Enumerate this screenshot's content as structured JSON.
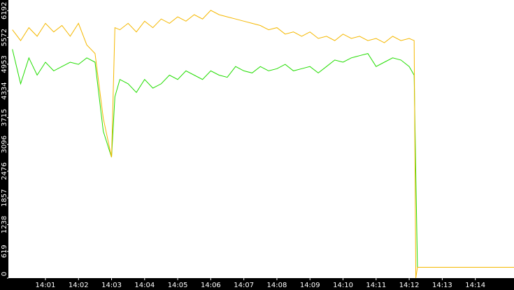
{
  "chart_data": {
    "type": "line",
    "x": [
      0,
      0.25,
      0.5,
      0.75,
      1.0,
      1.25,
      1.5,
      1.75,
      2.0,
      2.25,
      2.5,
      2.75,
      3.0,
      3.1,
      3.25,
      3.5,
      3.75,
      4.0,
      4.25,
      4.5,
      4.75,
      5.0,
      5.25,
      5.5,
      5.75,
      6.0,
      6.25,
      6.5,
      6.75,
      7.0,
      7.25,
      7.5,
      7.75,
      8.0,
      8.25,
      8.5,
      8.75,
      9.0,
      9.25,
      9.5,
      9.75,
      10.0,
      10.25,
      10.5,
      10.75,
      11.0,
      11.25,
      11.5,
      11.75,
      12.0,
      12.15,
      12.2,
      12.25,
      15.2
    ],
    "series": [
      {
        "color": "#22dd00",
        "values": [
          5300,
          4500,
          5100,
          4700,
          5000,
          4800,
          4900,
          5000,
          4950,
          5100,
          5000,
          3400,
          2800,
          4200,
          4600,
          4500,
          4300,
          4600,
          4400,
          4500,
          4700,
          4600,
          4800,
          4700,
          4600,
          4800,
          4700,
          4650,
          4900,
          4800,
          4750,
          4900,
          4800,
          4850,
          4950,
          4800,
          4850,
          4900,
          4750,
          4900,
          5050,
          5000,
          5100,
          5150,
          5200,
          4900,
          5000,
          5100,
          5050,
          4900,
          4700,
          2400,
          250,
          250
        ]
      },
      {
        "color": "#f5b800",
        "values": [
          5750,
          5500,
          5800,
          5600,
          5900,
          5700,
          5850,
          5600,
          5900,
          5400,
          5200,
          3700,
          2800,
          5800,
          5750,
          5900,
          5700,
          5950,
          5800,
          6000,
          5900,
          6050,
          5950,
          6100,
          6000,
          6200,
          6100,
          6050,
          6000,
          5950,
          5900,
          5850,
          5750,
          5800,
          5650,
          5700,
          5600,
          5700,
          5550,
          5600,
          5500,
          5650,
          5550,
          5600,
          5500,
          5550,
          5450,
          5600,
          5500,
          5550,
          5500,
          0,
          250,
          250
        ]
      }
    ],
    "xlim": [
      -0.12,
      15.17
    ],
    "xticks": [
      {
        "value": 1,
        "label": "14:01"
      },
      {
        "value": 2,
        "label": "14:02"
      },
      {
        "value": 3,
        "label": "14:03"
      },
      {
        "value": 4,
        "label": "14:04"
      },
      {
        "value": 5,
        "label": "14:05"
      },
      {
        "value": 6,
        "label": "14:06"
      },
      {
        "value": 7,
        "label": "14:07"
      },
      {
        "value": 8,
        "label": "14:08"
      },
      {
        "value": 9,
        "label": "14:09"
      },
      {
        "value": 10,
        "label": "14:10"
      },
      {
        "value": 11,
        "label": "14:11"
      },
      {
        "value": 12,
        "label": "14:12"
      },
      {
        "value": 13,
        "label": "14:13"
      },
      {
        "value": 14,
        "label": "14:14"
      }
    ],
    "ylim": [
      0,
      6440
    ],
    "yticks": [
      0,
      619,
      1238,
      1857,
      2476,
      3096,
      3715,
      4334,
      4953,
      5572,
      6192
    ]
  }
}
